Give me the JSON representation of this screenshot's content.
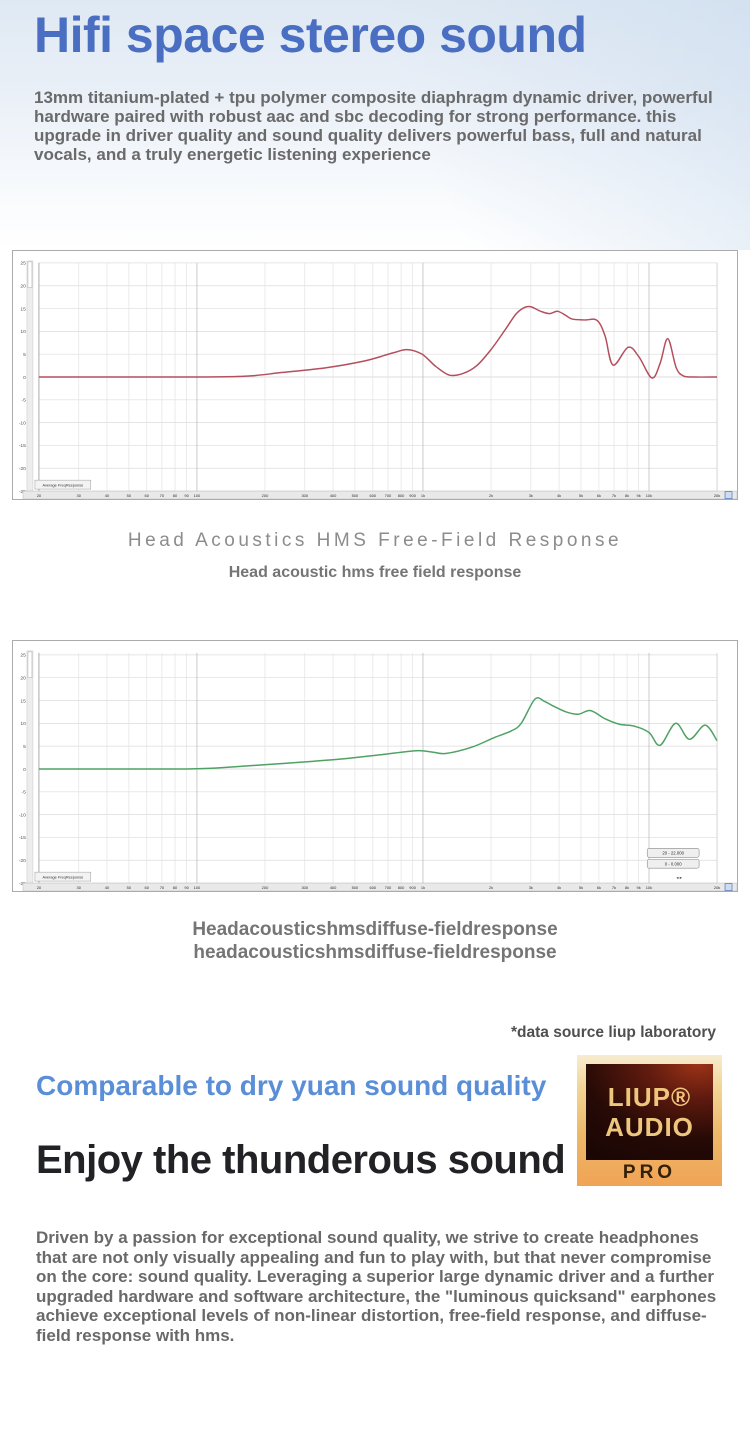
{
  "page": {
    "title": "Hifi space stereo sound",
    "intro": "13mm titanium-plated + tpu polymer composite diaphragm dynamic driver, powerful hardware paired with robust aac and sbc decoding for strong performance. this upgrade in driver quality and sound quality delivers powerful bass, full and natural vocals, and a truly energetic listening experience",
    "data_source_note": "*data source liup laboratory",
    "compare_headline": "Comparable to dry yuan sound quality",
    "enjoy_headline": "Enjoy the thunderous sound",
    "outro": "Driven by a passion for exceptional sound quality, we strive to create headphones that are not only visually appealing and fun to play with, but that never compromise on the core: sound quality. Leveraging a superior large dynamic driver and a further upgraded hardware and software architecture, the \"luminous quicksand\" earphones achieve exceptional levels of non-linear distortion, free-field response, and diffuse-field response with hms."
  },
  "logo": {
    "brand_line1": "LIUP®",
    "brand_line2": "AUDIO",
    "tier": "PRO"
  },
  "colors": {
    "title_blue": "#4a6fc2",
    "accent_blue": "#5a8fd8",
    "curve_red": "#b44f5e",
    "curve_green": "#4fa263",
    "logo_gold": "#edc77d",
    "logo_dark": "#260a06"
  },
  "chart_data": [
    {
      "type": "line",
      "title": "Head Acoustics HMS Free-Field Response",
      "subtitle": "Head acoustic hms free field response",
      "x_unit": "Hz",
      "y_unit": "dB",
      "x_scale": "log",
      "xlim": [
        20,
        20000
      ],
      "ylim": [
        -25,
        25
      ],
      "grid": true,
      "legend_position": "bottom-left",
      "tab_label": "Average FreqResponse",
      "y_ticks": [
        "25",
        "20",
        "15",
        "10",
        "5",
        "0",
        "-5",
        "-10",
        "-15",
        "-20",
        "-25"
      ],
      "x_tick_freqs": [
        20,
        30,
        40,
        50,
        60,
        70,
        80,
        90,
        100,
        200,
        300,
        400,
        500,
        600,
        700,
        800,
        900,
        1000,
        2000,
        3000,
        4000,
        5000,
        6000,
        7000,
        8000,
        9000,
        10000,
        20000
      ],
      "x_tick_labels": [
        "20",
        "30",
        "40",
        "50",
        "60",
        "70",
        "80",
        "90",
        "100",
        "200",
        "300",
        "400",
        "500",
        "600",
        "700",
        "800",
        "900",
        "1k",
        "2k",
        "3k",
        "4k",
        "5k",
        "6k",
        "7k",
        "8k",
        "9k",
        "10k",
        "20k"
      ],
      "series": [
        {
          "name": "Average FreqResponse",
          "color": "#b44f5e",
          "points": [
            [
              20,
              0
            ],
            [
              60,
              0
            ],
            [
              100,
              0
            ],
            [
              150,
              0.1
            ],
            [
              180,
              0.3
            ],
            [
              240,
              1
            ],
            [
              370,
              2
            ],
            [
              550,
              3.5
            ],
            [
              740,
              5.3
            ],
            [
              850,
              6
            ],
            [
              990,
              5
            ],
            [
              1140,
              2.3
            ],
            [
              1310,
              0.4
            ],
            [
              1510,
              0.8
            ],
            [
              1730,
              2.5
            ],
            [
              2000,
              6
            ],
            [
              2320,
              10.5
            ],
            [
              2580,
              13.8
            ],
            [
              2800,
              15.2
            ],
            [
              3000,
              15.4
            ],
            [
              3320,
              14.4
            ],
            [
              3630,
              13.9
            ],
            [
              3940,
              14.4
            ],
            [
              4280,
              13.5
            ],
            [
              4570,
              12.7
            ],
            [
              5210,
              12.5
            ],
            [
              5890,
              12.4
            ],
            [
              6390,
              9
            ],
            [
              6930,
              2.6
            ],
            [
              8080,
              6.5
            ],
            [
              9000,
              4.5
            ],
            [
              10290,
              -0.2
            ],
            [
              11200,
              3
            ],
            [
              12110,
              8.4
            ],
            [
              13200,
              2
            ],
            [
              14250,
              0.2
            ],
            [
              16000,
              0
            ],
            [
              20000,
              0
            ]
          ]
        }
      ]
    },
    {
      "type": "line",
      "title": "Headacousticshmsdiffuse-fieldresponse",
      "subtitle": "headacousticshmsdiffuse-fieldresponse",
      "x_unit": "Hz",
      "y_unit": "dB",
      "x_scale": "log",
      "xlim": [
        20,
        20000
      ],
      "ylim": [
        -25,
        25
      ],
      "grid": true,
      "legend_position": "bottom-left",
      "tab_label": "Average FreqResponse",
      "range_boxes": [
        "20 - 22.000",
        "0 - 0.000"
      ],
      "nav_arrows": "◂ ▸",
      "y_ticks": [
        "25",
        "20",
        "15",
        "10",
        "5",
        "0",
        "-5",
        "-10",
        "-15",
        "-20",
        "-25"
      ],
      "x_tick_freqs": [
        20,
        30,
        40,
        50,
        60,
        70,
        80,
        90,
        100,
        200,
        300,
        400,
        500,
        600,
        700,
        800,
        900,
        1000,
        2000,
        3000,
        4000,
        5000,
        6000,
        7000,
        8000,
        9000,
        10000,
        20000
      ],
      "x_tick_labels": [
        "20",
        "30",
        "40",
        "50",
        "60",
        "70",
        "80",
        "90",
        "100",
        "200",
        "300",
        "400",
        "500",
        "600",
        "700",
        "800",
        "900",
        "1k",
        "2k",
        "3k",
        "4k",
        "5k",
        "6k",
        "7k",
        "8k",
        "9k",
        "10k",
        "20k"
      ],
      "series": [
        {
          "name": "Average FreqResponse",
          "color": "#4fa263",
          "points": [
            [
              20,
              0
            ],
            [
              60,
              0
            ],
            [
              90,
              0
            ],
            [
              120,
              0.2
            ],
            [
              170,
              0.7
            ],
            [
              240,
              1.2
            ],
            [
              330,
              1.7
            ],
            [
              460,
              2.3
            ],
            [
              650,
              3.1
            ],
            [
              930,
              4
            ],
            [
              1100,
              3.7
            ],
            [
              1260,
              3.4
            ],
            [
              1650,
              4.8
            ],
            [
              2070,
              6.9
            ],
            [
              2450,
              8.3
            ],
            [
              2720,
              10
            ],
            [
              3130,
              15.3
            ],
            [
              3450,
              14.8
            ],
            [
              3700,
              14
            ],
            [
              4300,
              12.5
            ],
            [
              4870,
              12
            ],
            [
              5500,
              12.8
            ],
            [
              6400,
              11
            ],
            [
              7400,
              9.8
            ],
            [
              8600,
              9.4
            ],
            [
              10000,
              8
            ],
            [
              11200,
              5.2
            ],
            [
              13100,
              10
            ],
            [
              15100,
              6.5
            ],
            [
              17700,
              9.6
            ],
            [
              20000,
              6.2
            ]
          ]
        }
      ]
    }
  ]
}
